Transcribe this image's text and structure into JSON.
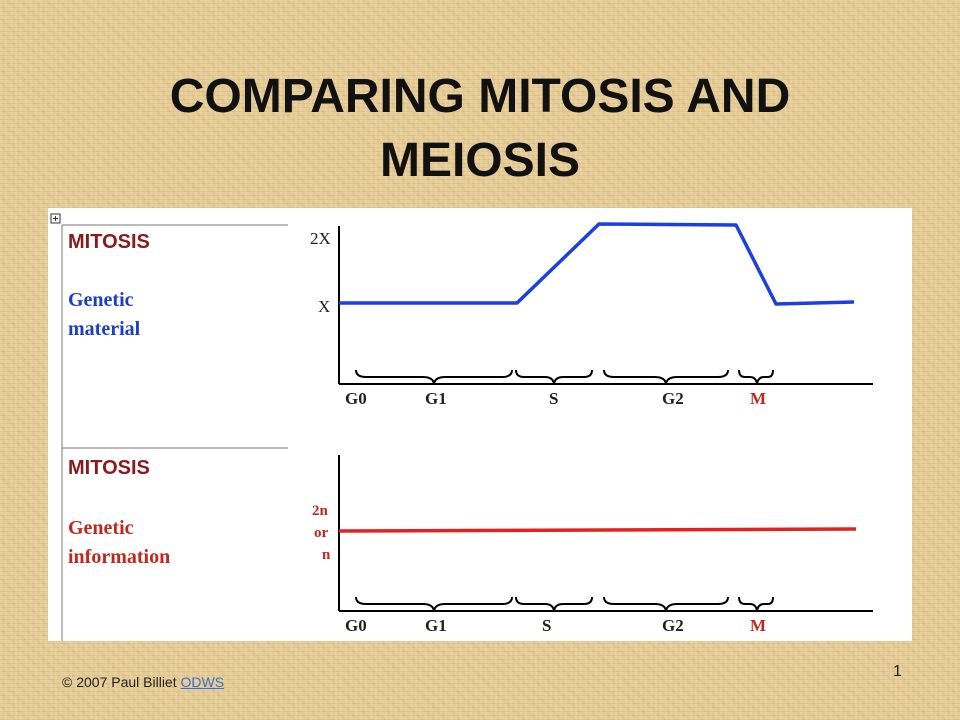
{
  "title": "COMPARING MITOSIS AND MEIOSIS",
  "panels": [
    {
      "heading": "MITOSIS",
      "subtitle_line1": "Genetic",
      "subtitle_line2": "material",
      "y_tick_high": "2X",
      "y_tick_low": "X",
      "phases": [
        "G0",
        "G1",
        "S",
        "G2",
        "M"
      ]
    },
    {
      "heading": "MITOSIS",
      "subtitle_line1": "Genetic",
      "subtitle_line2": "information",
      "y_tick_line1": "2n",
      "y_tick_line2": "or",
      "y_tick_line3": "n",
      "phases": [
        "G0",
        "G1",
        "S",
        "G2",
        "M"
      ]
    }
  ],
  "footer": {
    "copyright": "© 2007 Paul Billiet",
    "link": "ODWS"
  },
  "page_number": "1",
  "colors": {
    "heading": "#8b1a1a",
    "subtitle": "#1a3fc7",
    "dna_line": "#1a3fe6",
    "info_line": "#e62020",
    "m_phase_label": "#c0281e",
    "background": "#e6cc97"
  },
  "icons": [
    "expand-table-icon"
  ]
}
